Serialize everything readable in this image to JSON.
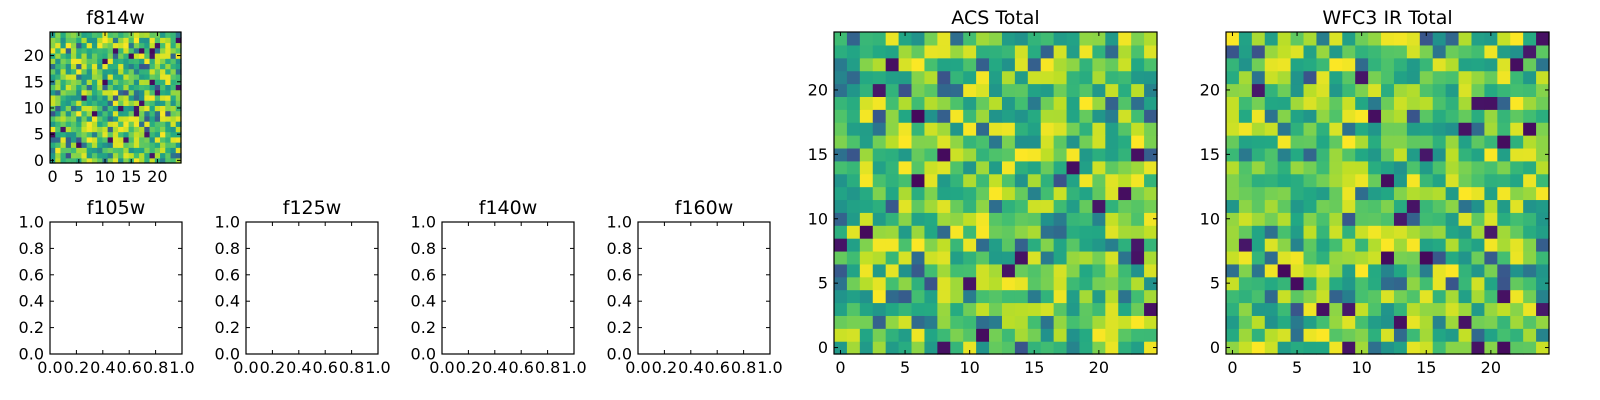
{
  "chart_data": [
    {
      "id": "f814w",
      "type": "heatmap",
      "title": "f814w",
      "grid_size": 25,
      "xlim": [
        -0.5,
        24.5
      ],
      "ylim": [
        -0.5,
        24.5
      ],
      "xticks": [
        0,
        5,
        10,
        15,
        20
      ],
      "yticks": [
        0,
        5,
        10,
        15,
        20
      ],
      "colormap": "viridis",
      "seed": 814
    },
    {
      "id": "f105w",
      "type": "empty",
      "title": "f105w",
      "xlim": [
        0,
        1
      ],
      "ylim": [
        0,
        1
      ],
      "xticks": [
        "0.0",
        "0.2",
        "0.4",
        "0.6",
        "0.8",
        "1.0"
      ],
      "yticks": [
        "0.0",
        "0.2",
        "0.4",
        "0.6",
        "0.8",
        "1.0"
      ]
    },
    {
      "id": "f125w",
      "type": "empty",
      "title": "f125w",
      "xlim": [
        0,
        1
      ],
      "ylim": [
        0,
        1
      ],
      "xticks": [
        "0.0",
        "0.2",
        "0.4",
        "0.6",
        "0.8",
        "1.0"
      ],
      "yticks": [
        "0.0",
        "0.2",
        "0.4",
        "0.6",
        "0.8",
        "1.0"
      ]
    },
    {
      "id": "f140w",
      "type": "empty",
      "title": "f140w",
      "xlim": [
        0,
        1
      ],
      "ylim": [
        0,
        1
      ],
      "xticks": [
        "0.0",
        "0.2",
        "0.4",
        "0.6",
        "0.8",
        "1.0"
      ],
      "yticks": [
        "0.0",
        "0.2",
        "0.4",
        "0.6",
        "0.8",
        "1.0"
      ]
    },
    {
      "id": "f160w",
      "type": "empty",
      "title": "f160w",
      "xlim": [
        0,
        1
      ],
      "ylim": [
        0,
        1
      ],
      "xticks": [
        "0.0",
        "0.2",
        "0.4",
        "0.6",
        "0.8",
        "1.0"
      ],
      "yticks": [
        "0.0",
        "0.2",
        "0.4",
        "0.6",
        "0.8",
        "1.0"
      ]
    },
    {
      "id": "acs-total",
      "type": "heatmap",
      "title": "ACS Total",
      "grid_size": 25,
      "xlim": [
        -0.5,
        24.5
      ],
      "ylim": [
        -0.5,
        24.5
      ],
      "xticks": [
        0,
        5,
        10,
        15,
        20
      ],
      "yticks": [
        0,
        5,
        10,
        15,
        20
      ],
      "colormap": "viridis",
      "seed": 1001
    },
    {
      "id": "wfc3-ir-total",
      "type": "heatmap",
      "title": "WFC3 IR Total",
      "grid_size": 25,
      "xlim": [
        -0.5,
        24.5
      ],
      "ylim": [
        -0.5,
        24.5
      ],
      "xticks": [
        0,
        5,
        10,
        15,
        20
      ],
      "yticks": [
        0,
        5,
        10,
        15,
        20
      ],
      "colormap": "viridis",
      "seed": 3003
    }
  ]
}
